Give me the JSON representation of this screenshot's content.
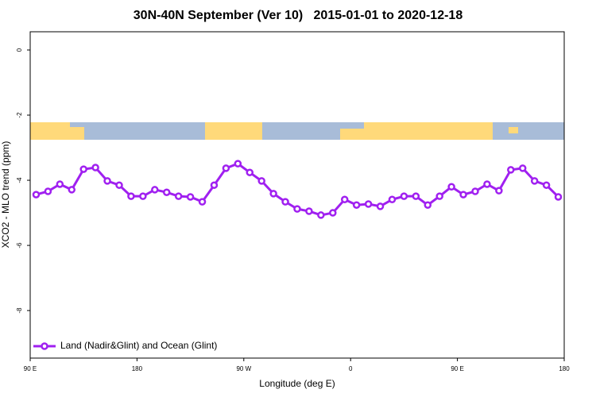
{
  "chart_data": {
    "type": "line",
    "title": "30N-40N September (Ver 10)   2015-01-01 to 2020-12-18",
    "x_label": "Longitude (deg E)",
    "y_label": "XCO2 - MLO trend (ppm)",
    "x": [
      95,
      105,
      115,
      125,
      135,
      145,
      155,
      165,
      175,
      185,
      195,
      205,
      215,
      225,
      235,
      245,
      255,
      265,
      275,
      285,
      295,
      305,
      315,
      325,
      335,
      345,
      355,
      365,
      375,
      385,
      395,
      405,
      415,
      425,
      435,
      445,
      455,
      465,
      475,
      485,
      495,
      505,
      515,
      525,
      535
    ],
    "series": [
      {
        "name": "Land (Nadir&Glint) and Ocean (Glint)",
        "color": "#a020f0",
        "values": [
          -4.44,
          -4.34,
          -4.12,
          -4.29,
          -3.66,
          -3.61,
          -4.02,
          -4.15,
          -4.49,
          -4.49,
          -4.29,
          -4.37,
          -4.49,
          -4.51,
          -4.66,
          -4.15,
          -3.63,
          -3.49,
          -3.76,
          -4.02,
          -4.41,
          -4.66,
          -4.88,
          -4.95,
          -5.07,
          -5.0,
          -4.59,
          -4.76,
          -4.73,
          -4.8,
          -4.59,
          -4.49,
          -4.49,
          -4.76,
          -4.49,
          -4.2,
          -4.44,
          -4.34,
          -4.12,
          -4.32,
          -3.68,
          -3.63,
          -4.02,
          -4.15,
          -4.51
        ]
      }
    ],
    "xlim": [
      90,
      540
    ],
    "xticks": [
      {
        "value": 90,
        "label": "90 E"
      },
      180,
      {
        "value": 270,
        "label": "90 W"
      },
      {
        "value": 360,
        "label": "0"
      },
      {
        "value": 450,
        "label": "90 E"
      },
      {
        "value": 540,
        "label": "180"
      }
    ],
    "ylim": [
      -9.46,
      0.56
    ],
    "yticks": [
      0,
      -2,
      -4,
      -6,
      -8
    ],
    "legend": "bottom-left"
  }
}
